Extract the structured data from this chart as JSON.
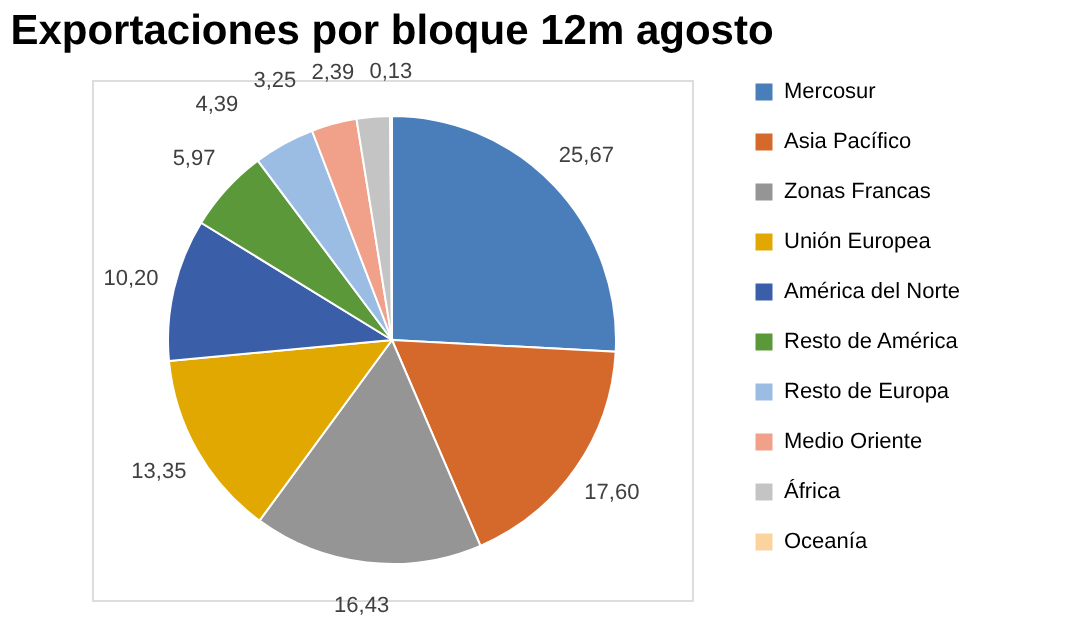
{
  "chart_data": {
    "type": "pie",
    "title": "Exportaciones por bloque 12m agosto",
    "categories": [
      "Mercosur",
      "Asia Pacífico",
      "Zonas Francas",
      "Unión Europea",
      "América del Norte",
      "Resto de América",
      "Resto de Europa",
      "Medio Oriente",
      "África",
      "Oceanía"
    ],
    "values": [
      25.67,
      17.6,
      16.43,
      13.35,
      10.2,
      5.97,
      4.39,
      3.25,
      2.39,
      0.13
    ],
    "value_labels": [
      "25,67",
      "17,60",
      "16,43",
      "13,35",
      "10,20",
      "5,97",
      "4,39",
      "3,25",
      "2,39",
      "0,13"
    ],
    "colors": [
      "#4a7ebb",
      "#d5692b",
      "#959595",
      "#e0a800",
      "#3a5ea8",
      "#5b983a",
      "#9bbde3",
      "#f1a08a",
      "#c4c4c4",
      "#fbd39f"
    ],
    "legend": "right"
  }
}
